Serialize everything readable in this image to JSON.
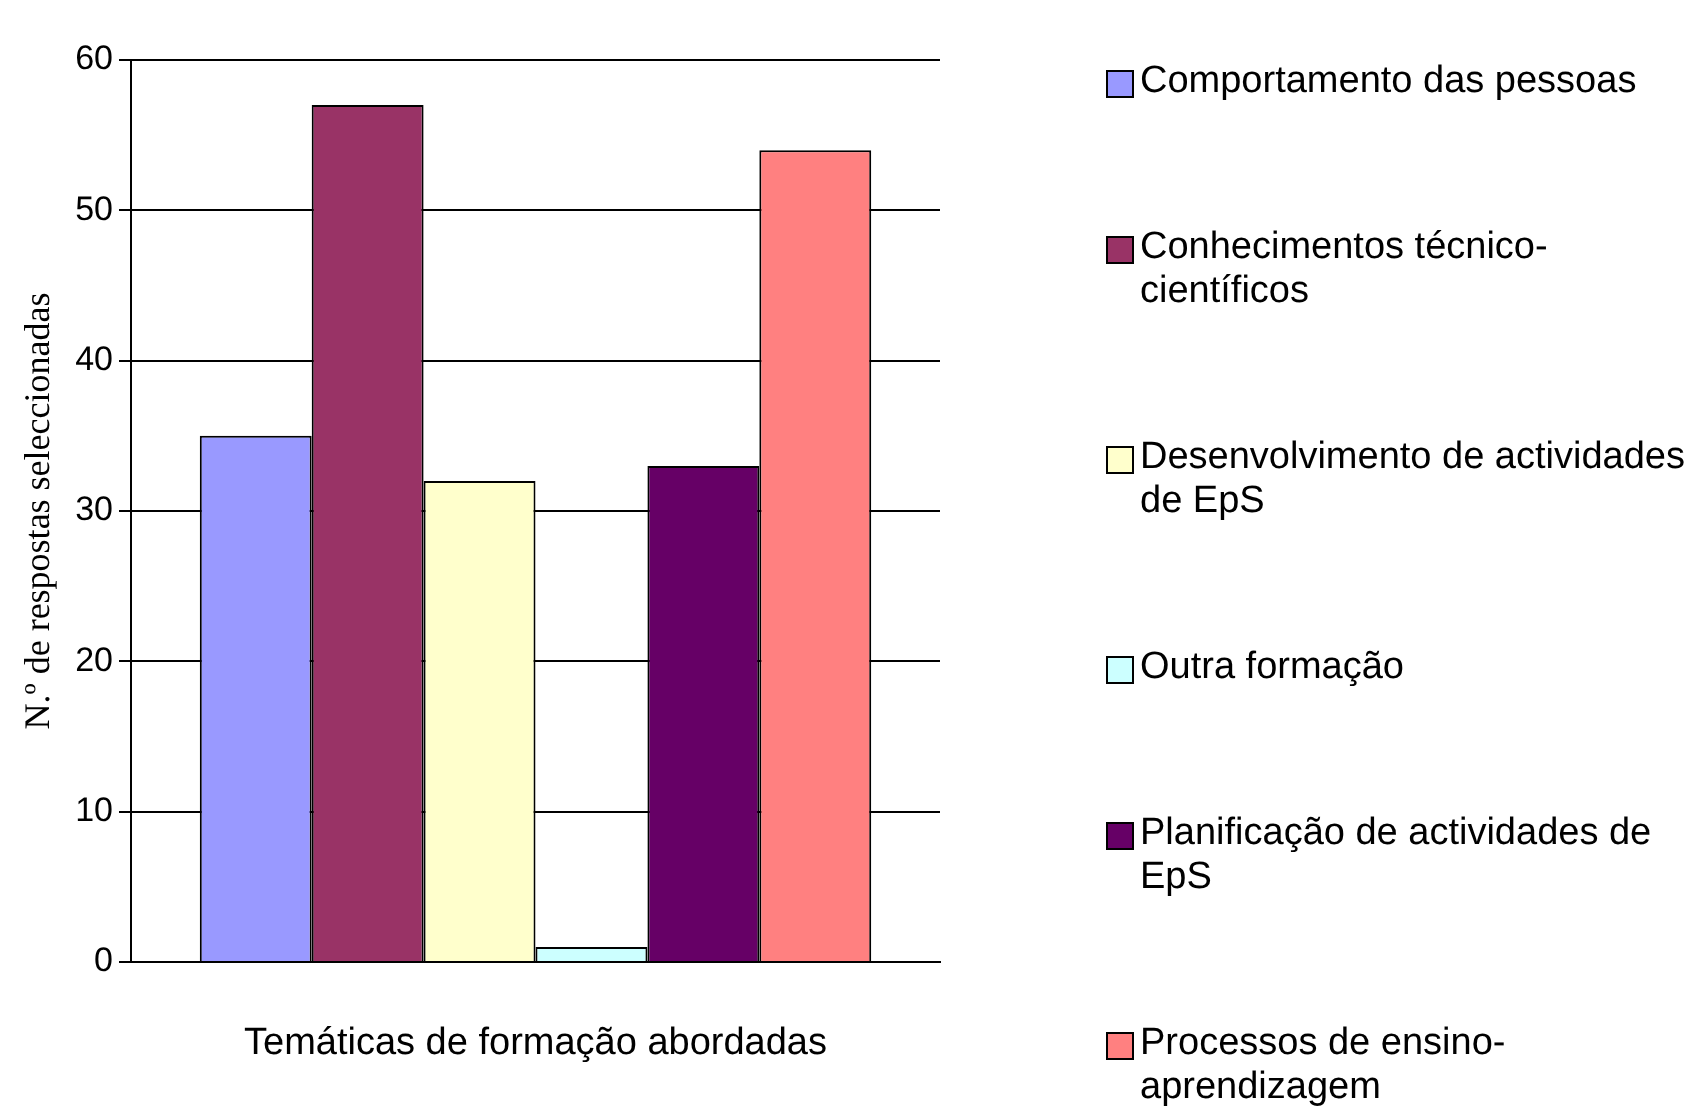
{
  "chart_data": {
    "type": "bar",
    "xlabel": "Temáticas de formação abordadas",
    "ylabel": "N.º de respostas seleccionadas",
    "categories": [
      null
    ],
    "series": [
      {
        "name": "Comportamento das pessoas",
        "color": "#9999ff",
        "values": [
          35
        ]
      },
      {
        "name": "Conhecimentos técnico-científicos",
        "color": "#993366",
        "values": [
          57
        ]
      },
      {
        "name": "Desenvolvimento de actividades de EpS",
        "color": "#ffffcc",
        "values": [
          32
        ]
      },
      {
        "name": "Outra formação",
        "color": "#ccffff",
        "values": [
          1
        ]
      },
      {
        "name": "Planificação de actividades de EpS",
        "color": "#660066",
        "values": [
          33
        ]
      },
      {
        "name": "Processos de ensino-aprendizagem",
        "color": "#ff8080",
        "values": [
          54
        ]
      }
    ],
    "ylim": [
      0,
      60
    ],
    "yticks": [
      0,
      10,
      20,
      30,
      40,
      50,
      60
    ],
    "grid": "y",
    "legend": "right"
  }
}
